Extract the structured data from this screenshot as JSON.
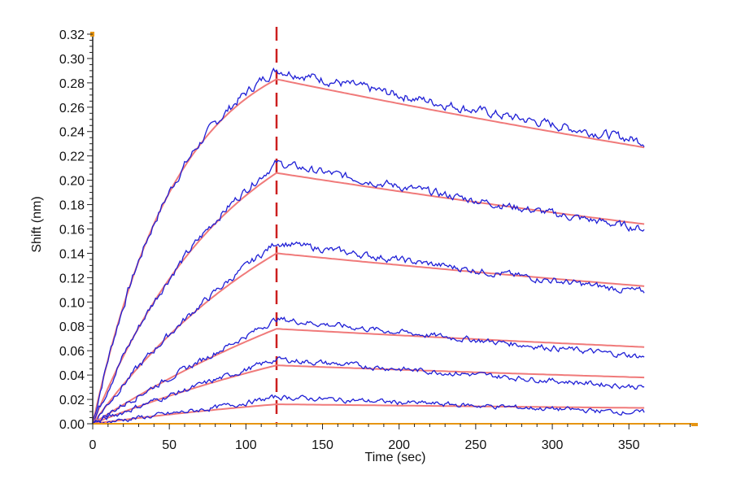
{
  "chart_data": {
    "type": "line",
    "xlabel": "Time (sec)",
    "ylabel": "Shift (nm)",
    "xlim": [
      0,
      395
    ],
    "ylim": [
      0,
      0.322
    ],
    "x_ticks": [
      0,
      50,
      100,
      150,
      200,
      250,
      300,
      350
    ],
    "x_tick_labels": [
      "0",
      "50",
      "100",
      "150",
      "200",
      "250",
      "300",
      "350"
    ],
    "y_ticks": [
      0.0,
      0.02,
      0.04,
      0.06,
      0.08,
      0.1,
      0.12,
      0.14,
      0.16,
      0.18,
      0.2,
      0.22,
      0.24,
      0.26,
      0.28,
      0.3,
      0.32
    ],
    "y_tick_labels": [
      "0.00",
      "0.02",
      "0.04",
      "0.06",
      "0.08",
      "0.10",
      "0.12",
      "0.14",
      "0.16",
      "0.18",
      "0.20",
      "0.22",
      "0.24",
      "0.26",
      "0.28",
      "0.30",
      "0.32"
    ],
    "dissociation_start": 120,
    "end_time": 360,
    "colors": {
      "measured": "#1f1fd6",
      "fit": "#f07a7a",
      "marker": "#cc1f1f",
      "axis": "#e69512"
    },
    "series": [
      {
        "association_end": 0.283,
        "dissociation_end": 0.227,
        "measured_peak": 0.291,
        "measured_end": 0.232
      },
      {
        "association_end": 0.206,
        "dissociation_end": 0.164,
        "measured_peak": 0.214,
        "measured_end": 0.16
      },
      {
        "association_end": 0.14,
        "dissociation_end": 0.113,
        "measured_peak": 0.149,
        "measured_end": 0.108
      },
      {
        "association_end": 0.078,
        "dissociation_end": 0.063,
        "measured_peak": 0.086,
        "measured_end": 0.055
      },
      {
        "association_end": 0.048,
        "dissociation_end": 0.038,
        "measured_peak": 0.053,
        "measured_end": 0.03
      },
      {
        "association_end": 0.016,
        "dissociation_end": 0.013,
        "measured_peak": 0.022,
        "measured_end": 0.009
      }
    ]
  }
}
